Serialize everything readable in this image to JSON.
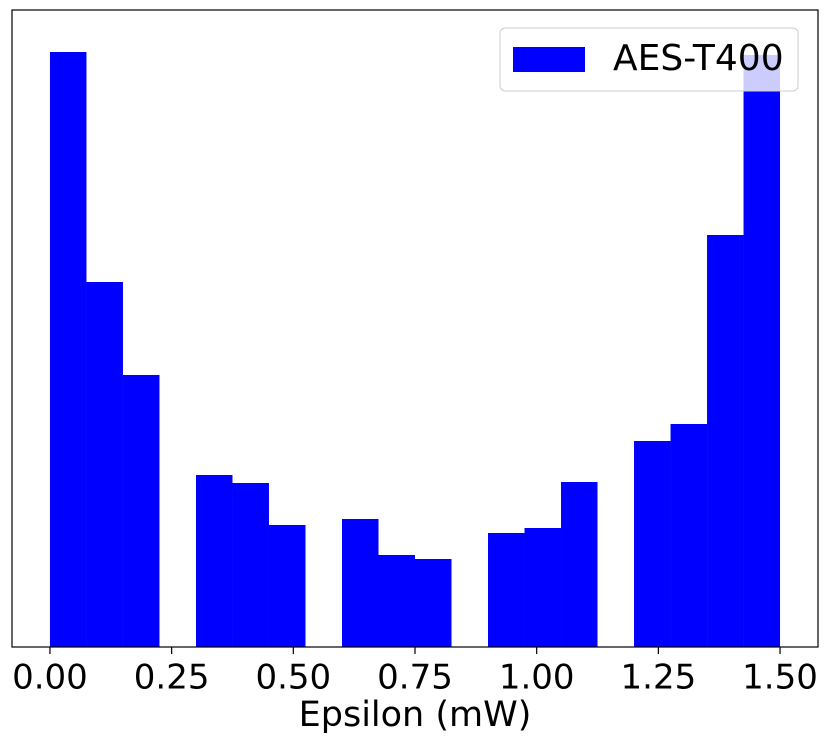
{
  "chart_data": {
    "type": "histogram",
    "xlabel": "Epsilon (mW)",
    "bins": [
      0,
      0.075,
      0.15,
      0.225,
      0.3,
      0.375,
      0.45,
      0.525,
      0.6,
      0.675,
      0.75,
      0.825,
      0.9,
      0.975,
      1.05,
      1.125,
      1.2,
      1.275,
      1.35,
      1.425,
      1.5
    ],
    "series": [
      {
        "name": "AES-T400",
        "color": "#0000ff",
        "values": [
          595,
          365,
          272,
          0,
          172,
          164,
          122,
          0,
          128,
          92,
          88,
          0,
          114,
          119,
          165,
          0,
          206,
          223,
          412,
          592
        ]
      }
    ],
    "xlim": [
      -0.078,
      1.578
    ],
    "ylim": [
      0,
      637
    ],
    "xticks": [
      {
        "value": 0,
        "label": "0.00"
      },
      {
        "value": 0.25,
        "label": "0.25"
      },
      {
        "value": 0.5,
        "label": "0.50"
      },
      {
        "value": 0.75,
        "label": "0.75"
      },
      {
        "value": 1,
        "label": "1.00"
      },
      {
        "value": 1.25,
        "label": "1.25"
      },
      {
        "value": 1.5,
        "label": "1.50"
      }
    ],
    "legend": "upper right"
  }
}
